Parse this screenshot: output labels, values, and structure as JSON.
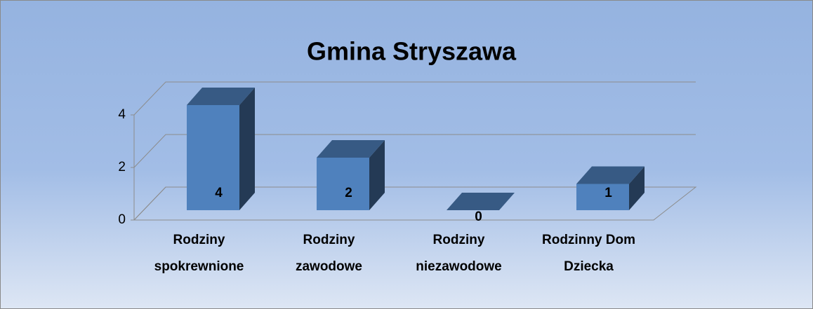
{
  "chart_data": {
    "type": "bar3d",
    "title": "Gmina Stryszawa",
    "categories": [
      "Rodziny\nspokrewnione",
      "Rodziny\nzawodowe",
      "Rodziny\nniezawodowe",
      "Rodzinny Dom\nDziecka"
    ],
    "values": [
      4,
      2,
      0,
      1
    ],
    "color": "#4f81bd",
    "ylim": [
      0,
      4
    ],
    "yticks": [
      0,
      2,
      4
    ],
    "grid": true
  }
}
